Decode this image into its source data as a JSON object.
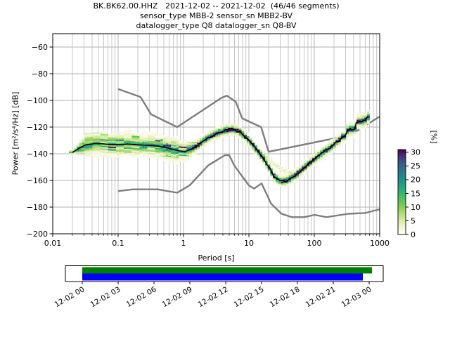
{
  "title": {
    "line1": "BK.BK62.00.HHZ   2021-12-02 -- 2021-12-02  (46/46 segments)",
    "line2": "sensor_type MBB-2 sensor_sn MBB2-BV",
    "line3": "datalogger_type Q8 datalogger_sn Q8-BV"
  },
  "axes": {
    "xlabel": "Period [s]",
    "ylabel": "Power [m²/s⁴/Hz] [dB]"
  },
  "colorbar": {
    "label": "[%]",
    "tick_values": [
      0,
      5,
      10,
      15,
      20,
      25,
      30
    ],
    "tick_labels": [
      "0",
      "5",
      "10",
      "15",
      "20",
      "25",
      "30"
    ],
    "max_value": 31
  },
  "colors": {
    "grid": "#b0b0b0",
    "noise_model": "#7d7d7d",
    "mode_line": "#000000",
    "timeline_green": "#008000",
    "timeline_blue": "#0000ff",
    "colormap_stops": [
      [
        0,
        "#ffffff"
      ],
      [
        1.5,
        "#f7f9e4"
      ],
      [
        3,
        "#edf3c9"
      ],
      [
        5,
        "#d8e9a3"
      ],
      [
        7,
        "#bce07f"
      ],
      [
        9,
        "#9ad55c"
      ],
      [
        11,
        "#74c956"
      ],
      [
        13,
        "#52c05f"
      ],
      [
        15,
        "#38b46f"
      ],
      [
        17,
        "#27a67f"
      ],
      [
        19,
        "#219687"
      ],
      [
        21,
        "#24868a"
      ],
      [
        23,
        "#2a768e"
      ],
      [
        25,
        "#33648d"
      ],
      [
        26.5,
        "#3d5389"
      ],
      [
        28,
        "#453b80"
      ],
      [
        29.5,
        "#461f6d"
      ],
      [
        31,
        "#440154"
      ]
    ]
  },
  "chart_data": {
    "type": "heatmap",
    "title": "BK.BK62.00.HHZ 2021-12-02 -- 2021-12-02 (46/46 segments)",
    "xlabel": "Period [s]",
    "ylabel": "Power [m²/s⁴/Hz] [dB]",
    "x_scale": "log",
    "xlim": [
      0.01,
      1000
    ],
    "ylim": [
      -200,
      -50
    ],
    "grid": true,
    "x_tick_values": [
      0.01,
      0.1,
      1,
      10,
      100,
      1000
    ],
    "x_tick_labels": [
      "0.01",
      "0.1",
      "1",
      "10",
      "100",
      "1000"
    ],
    "y_tick_values": [
      -60,
      -80,
      -100,
      -120,
      -140,
      -160,
      -180,
      -200
    ],
    "y_tick_labels": [
      "−60",
      "−80",
      "−100",
      "−120",
      "−140",
      "−160",
      "−180",
      "−200"
    ],
    "mode_curve": [
      [
        0.02,
        -139
      ],
      [
        0.025,
        -136
      ],
      [
        0.032,
        -133.3
      ],
      [
        0.045,
        -132.3
      ],
      [
        0.06,
        -132.6
      ],
      [
        0.08,
        -133.2
      ],
      [
        0.1,
        -133.2
      ],
      [
        0.14,
        -132.7
      ],
      [
        0.2,
        -133.3
      ],
      [
        0.3,
        -133.8
      ],
      [
        0.42,
        -134.3
      ],
      [
        0.55,
        -135.5
      ],
      [
        0.7,
        -136.8
      ],
      [
        0.85,
        -137.8
      ],
      [
        1.05,
        -138.3
      ],
      [
        1.3,
        -136.8
      ],
      [
        1.6,
        -134.0
      ],
      [
        2.0,
        -130.5
      ],
      [
        2.5,
        -127.5
      ],
      [
        3.2,
        -124.8
      ],
      [
        4.0,
        -123.0
      ],
      [
        5.0,
        -121.8
      ],
      [
        6.0,
        -121.9
      ],
      [
        7.0,
        -123.0
      ],
      [
        8.0,
        -125.3
      ],
      [
        9.5,
        -128.9
      ],
      [
        11,
        -132.0
      ],
      [
        13,
        -136.5
      ],
      [
        15,
        -140.5
      ],
      [
        17.5,
        -145.0
      ],
      [
        20,
        -150.0
      ],
      [
        23,
        -155.0
      ],
      [
        26,
        -158.4
      ],
      [
        30,
        -160.3
      ],
      [
        35,
        -160.8
      ],
      [
        42,
        -159.0
      ],
      [
        50,
        -156.5
      ],
      [
        60,
        -153.3
      ],
      [
        72,
        -150.0
      ],
      [
        85,
        -146.8
      ],
      [
        100,
        -144.0
      ],
      [
        120,
        -141.0
      ],
      [
        140,
        -138.5
      ],
      [
        165,
        -136.0
      ],
      [
        190,
        -134.0
      ],
      [
        215,
        -131.5
      ],
      [
        245,
        -129.5
      ],
      [
        270,
        -127.3
      ],
      [
        295,
        -127.0
      ],
      [
        310,
        -123.5
      ],
      [
        340,
        -122.0
      ],
      [
        400,
        -121.2
      ],
      [
        425,
        -121.0
      ],
      [
        435,
        -116.5
      ],
      [
        470,
        -115.8
      ],
      [
        540,
        -115.4
      ],
      [
        610,
        -114.8
      ],
      [
        640,
        -113.0
      ],
      [
        680,
        -112.3
      ]
    ],
    "high_noise_model": [
      [
        0.1,
        -91.5
      ],
      [
        0.22,
        -97.4
      ],
      [
        0.32,
        -110.5
      ],
      [
        0.8,
        -120.0
      ],
      [
        3.8,
        -98.1
      ],
      [
        4.6,
        -96.5
      ],
      [
        6.3,
        -101.0
      ],
      [
        7.9,
        -113.5
      ],
      [
        15.4,
        -120.0
      ],
      [
        20,
        -138.5
      ],
      [
        354.8,
        -126.0
      ],
      [
        1000,
        -112.1
      ]
    ],
    "low_noise_model": [
      [
        0.1,
        -168.0
      ],
      [
        0.17,
        -166.7
      ],
      [
        0.4,
        -166.7
      ],
      [
        0.8,
        -169.2
      ],
      [
        1.24,
        -163.7
      ],
      [
        2.4,
        -148.6
      ],
      [
        4.3,
        -141.1
      ],
      [
        5.0,
        -141.1
      ],
      [
        6.0,
        -149.0
      ],
      [
        10,
        -163.8
      ],
      [
        12,
        -166.1
      ],
      [
        15.6,
        -162.2
      ],
      [
        21.9,
        -177.5
      ],
      [
        31.6,
        -185.0
      ],
      [
        45,
        -187.5
      ],
      [
        70,
        -187.5
      ],
      [
        101,
        -185.8
      ],
      [
        154,
        -187.5
      ],
      [
        328,
        -185.0
      ],
      [
        600,
        -184.4
      ],
      [
        1000,
        -181.6
      ]
    ],
    "histogram": {
      "period_range": [
        0.0185,
        680
      ],
      "wide_region_end": 1.4,
      "wide": {
        "sigma": 3.2,
        "peak": 13,
        "halo_sigma": 5.8,
        "halo_peak": 2.6
      },
      "narrow": {
        "sigma": 1.2,
        "peak": 27,
        "halo_sigma": 2.8,
        "halo_peak": 4.5
      },
      "faint_branch": [
        [
          11,
          -134.5
        ],
        [
          14,
          -138
        ],
        [
          18,
          -142.5
        ],
        [
          24,
          -147.5
        ],
        [
          32,
          -151.5
        ],
        [
          42,
          -154.5
        ],
        [
          58,
          -157
        ]
      ],
      "faint_branch_peak": 3.5
    },
    "timeline": {
      "tick_labels": [
        "12-02 00",
        "12-02 03",
        "12-02 06",
        "12-02 09",
        "12-02 12",
        "12-02 15",
        "12-02 18",
        "12-02 21",
        "12-03 00"
      ],
      "bars": [
        {
          "name": "data-coverage-bar",
          "color": "#008000",
          "start": 0,
          "end": 1.01
        },
        {
          "name": "psd-segments-bar",
          "color": "#0000ff",
          "start": 0,
          "end": 0.978
        }
      ]
    }
  }
}
